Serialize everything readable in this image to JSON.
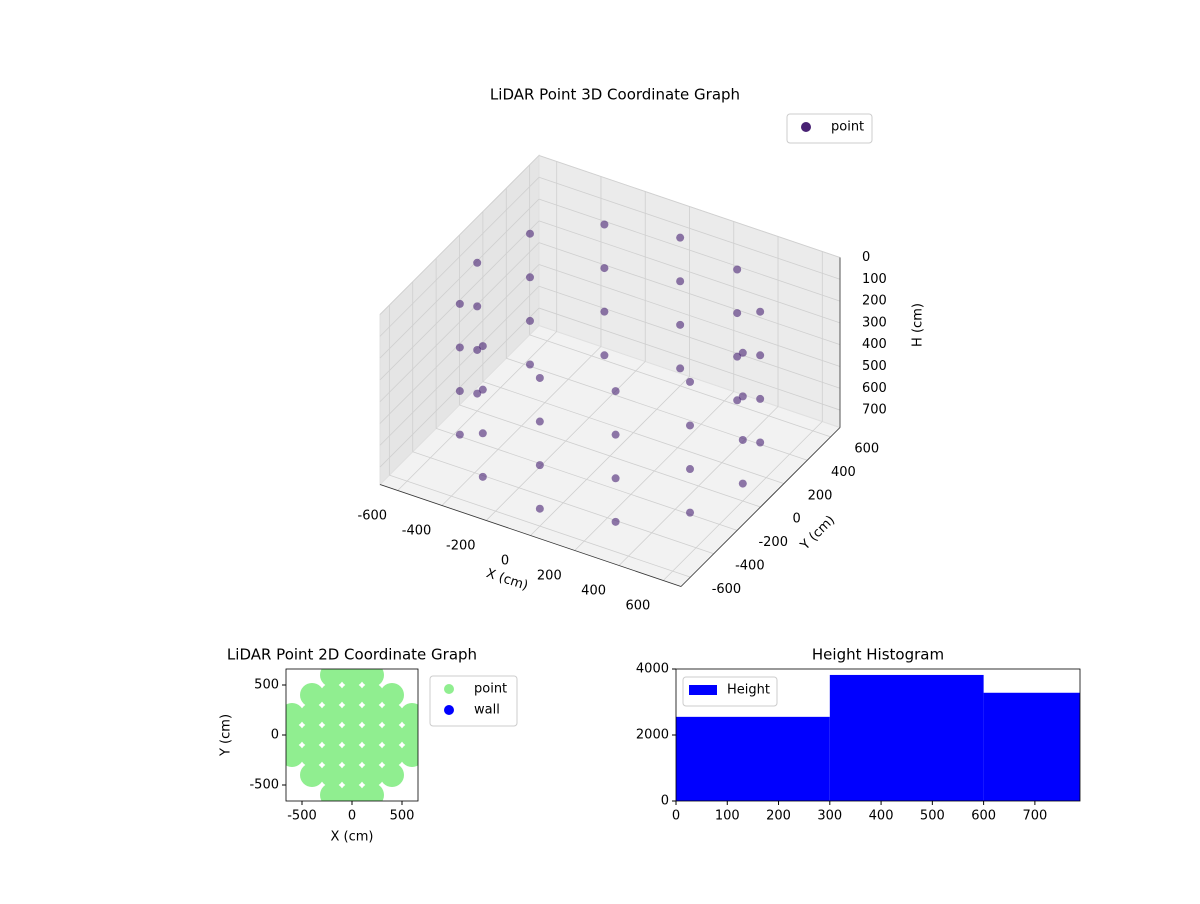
{
  "chart_data": [
    {
      "type": "scatter3d",
      "title": "LiDAR Point 3D Coordinate Graph",
      "xlabel": "X (cm)",
      "ylabel": "Y (cm)",
      "zlabel": "H (cm)",
      "xlim": [
        -680,
        680
      ],
      "ylim": [
        -680,
        680
      ],
      "zlim": [
        0,
        780
      ],
      "zinverted": true,
      "xticks": [
        -600,
        -400,
        -200,
        0,
        200,
        400,
        600
      ],
      "yticks": [
        -600,
        -400,
        -200,
        0,
        200,
        400,
        600
      ],
      "zticks": [
        0,
        100,
        200,
        300,
        400,
        500,
        600,
        700
      ],
      "grid": true,
      "legend": "upper right",
      "series": [
        {
          "name": "point",
          "color": "#482173",
          "x": [
            600,
            520,
            300,
            0,
            -300,
            -520,
            -600,
            -520,
            -300,
            0,
            300,
            520,
            600,
            520,
            300,
            0,
            -300,
            -520,
            -600,
            -520,
            -300,
            0,
            300,
            520,
            600,
            520,
            300,
            0,
            -300,
            -520,
            -600,
            -520,
            -300,
            0,
            300,
            520,
            600,
            520,
            300,
            0,
            -300,
            -520,
            -600,
            -520,
            -300,
            0,
            300,
            520
          ],
          "y": [
            0,
            300,
            520,
            600,
            520,
            300,
            0,
            -300,
            -520,
            -600,
            -520,
            -300,
            0,
            300,
            520,
            600,
            520,
            300,
            0,
            -300,
            -520,
            -600,
            -520,
            -300,
            0,
            300,
            520,
            600,
            520,
            300,
            0,
            -300,
            -520,
            -600,
            -520,
            -300,
            0,
            300,
            520,
            600,
            520,
            300,
            0,
            -300,
            -520,
            -600,
            -520,
            -300
          ],
          "z": [
            100,
            100,
            100,
            100,
            100,
            100,
            100,
            100,
            100,
            100,
            100,
            100,
            300,
            300,
            300,
            300,
            300,
            300,
            300,
            300,
            300,
            300,
            300,
            300,
            500,
            500,
            500,
            500,
            500,
            500,
            500,
            500,
            500,
            500,
            500,
            500,
            700,
            700,
            700,
            700,
            700,
            700,
            700,
            700,
            700,
            700,
            700,
            700
          ]
        }
      ]
    },
    {
      "type": "scatter",
      "title": "LiDAR Point 2D Coordinate Graph",
      "xlabel": "X (cm)",
      "ylabel": "Y (cm)",
      "xlim": [
        -660,
        660
      ],
      "ylim": [
        -660,
        660
      ],
      "xticks": [
        -500,
        0,
        500
      ],
      "yticks": [
        -500,
        0,
        500
      ],
      "legend": "outside right",
      "series": [
        {
          "name": "point",
          "color": "#90ee90",
          "x": [
            -600,
            -600,
            -600,
            -400,
            -400,
            -400,
            -400,
            -400,
            -200,
            -200,
            -200,
            -200,
            -200,
            -200,
            -200,
            0,
            0,
            0,
            0,
            0,
            0,
            0,
            200,
            200,
            200,
            200,
            200,
            200,
            200,
            400,
            400,
            400,
            400,
            400,
            600,
            600,
            600
          ],
          "y": [
            -200,
            0,
            200,
            -400,
            -200,
            0,
            200,
            400,
            -600,
            -400,
            -200,
            0,
            200,
            400,
            600,
            -600,
            -400,
            -200,
            0,
            200,
            400,
            600,
            -600,
            -400,
            -200,
            0,
            200,
            400,
            600,
            -400,
            -200,
            0,
            200,
            400,
            -200,
            0,
            200
          ]
        },
        {
          "name": "wall",
          "color": "#0000ff",
          "x": [],
          "y": []
        }
      ]
    },
    {
      "type": "histogram",
      "title": "Height Histogram",
      "bins": [
        0,
        300,
        600,
        788
      ],
      "xlim": [
        0,
        788
      ],
      "ylim": [
        0,
        4000
      ],
      "xticks": [
        0,
        100,
        200,
        300,
        400,
        500,
        600,
        700
      ],
      "yticks": [
        0,
        2000,
        4000
      ],
      "legend": "upper left",
      "series": [
        {
          "name": "Height",
          "color": "#0000ff",
          "values": [
            2550,
            3820,
            3280
          ]
        }
      ]
    }
  ]
}
